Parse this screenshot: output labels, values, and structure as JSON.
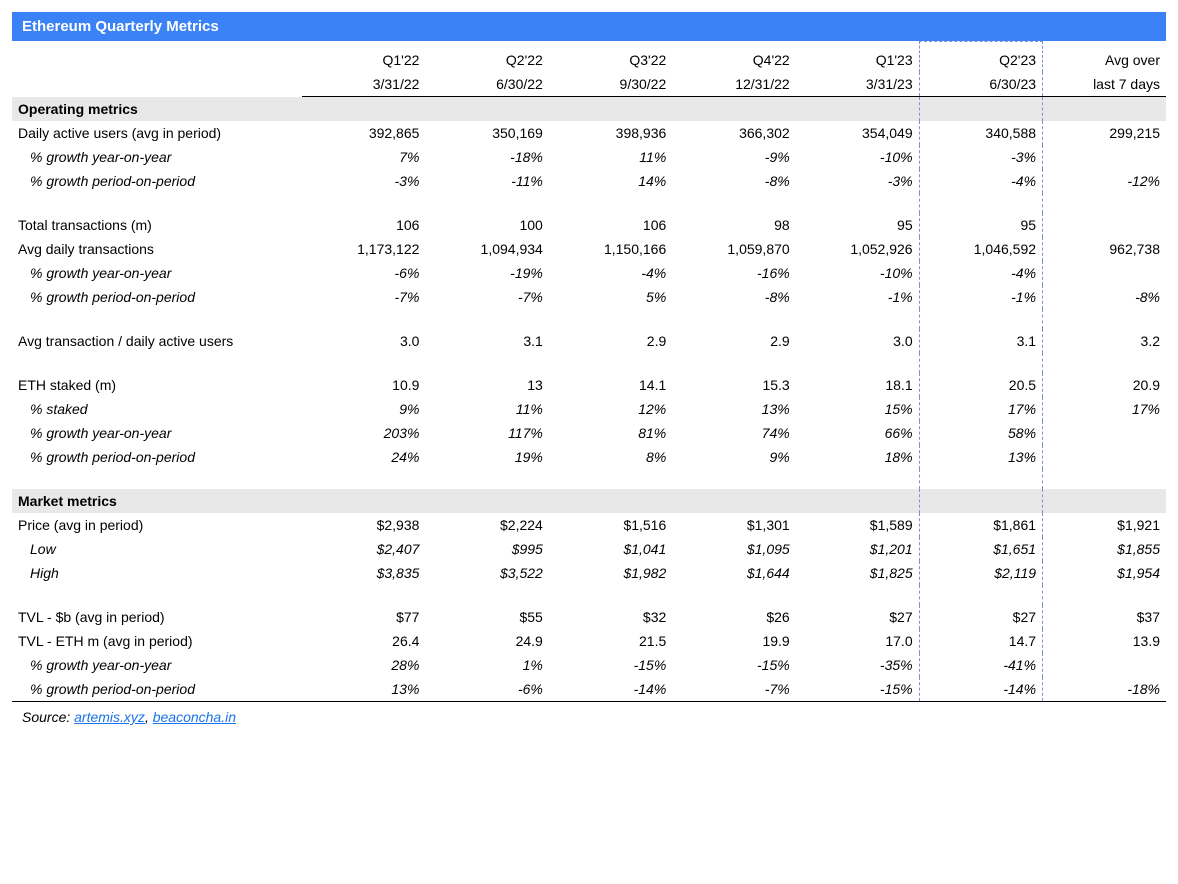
{
  "title": "Ethereum Quarterly Metrics",
  "colors": {
    "headerBar": "#3b82f6",
    "headerText": "#ffffff",
    "sectionBg": "#e8e8e8",
    "highlightBorder": "#7a93d0",
    "link": "#1a73e8",
    "background": "#ffffff",
    "text": "#000000"
  },
  "columns": [
    {
      "q": "Q1'22",
      "date": "3/31/22"
    },
    {
      "q": "Q2'22",
      "date": "6/30/22"
    },
    {
      "q": "Q3'22",
      "date": "9/30/22"
    },
    {
      "q": "Q4'22",
      "date": "12/31/22"
    },
    {
      "q": "Q1'23",
      "date": "3/31/23"
    },
    {
      "q": "Q2'23",
      "date": "6/30/23",
      "highlight": true
    },
    {
      "q": "Avg over",
      "date": "last 7 days"
    }
  ],
  "sections": [
    {
      "title": "Operating metrics",
      "rows": [
        {
          "label": "Daily active users (avg in period)",
          "cells": [
            "392,865",
            "350,169",
            "398,936",
            "366,302",
            "354,049",
            "340,588",
            "299,215"
          ]
        },
        {
          "label": "% growth year-on-year",
          "sub": true,
          "cells": [
            "7%",
            "-18%",
            "11%",
            "-9%",
            "-10%",
            "-3%",
            ""
          ]
        },
        {
          "label": "% growth period-on-period",
          "sub": true,
          "cells": [
            "-3%",
            "-11%",
            "14%",
            "-8%",
            "-3%",
            "-4%",
            "-12%"
          ]
        },
        {
          "spacer": true
        },
        {
          "label": "Total transactions (m)",
          "cells": [
            "106",
            "100",
            "106",
            "98",
            "95",
            "95",
            ""
          ]
        },
        {
          "label": "Avg daily transactions",
          "cells": [
            "1,173,122",
            "1,094,934",
            "1,150,166",
            "1,059,870",
            "1,052,926",
            "1,046,592",
            "962,738"
          ]
        },
        {
          "label": "% growth year-on-year",
          "sub": true,
          "cells": [
            "-6%",
            "-19%",
            "-4%",
            "-16%",
            "-10%",
            "-4%",
            ""
          ]
        },
        {
          "label": "% growth period-on-period",
          "sub": true,
          "cells": [
            "-7%",
            "-7%",
            "5%",
            "-8%",
            "-1%",
            "-1%",
            "-8%"
          ]
        },
        {
          "spacer": true
        },
        {
          "label": "Avg transaction / daily active users",
          "cells": [
            "3.0",
            "3.1",
            "2.9",
            "2.9",
            "3.0",
            "3.1",
            "3.2"
          ]
        },
        {
          "spacer": true
        },
        {
          "label": "ETH staked (m)",
          "cells": [
            "10.9",
            "13",
            "14.1",
            "15.3",
            "18.1",
            "20.5",
            "20.9"
          ]
        },
        {
          "label": "% staked",
          "sub": true,
          "cells": [
            "9%",
            "11%",
            "12%",
            "13%",
            "15%",
            "17%",
            "17%"
          ]
        },
        {
          "label": "% growth year-on-year",
          "sub": true,
          "cells": [
            "203%",
            "117%",
            "81%",
            "74%",
            "66%",
            "58%",
            ""
          ]
        },
        {
          "label": "% growth period-on-period",
          "sub": true,
          "cells": [
            "24%",
            "19%",
            "8%",
            "9%",
            "18%",
            "13%",
            ""
          ]
        },
        {
          "spacer": true
        }
      ]
    },
    {
      "title": "Market metrics",
      "rows": [
        {
          "label": "Price (avg in period)",
          "cells": [
            "$2,938",
            "$2,224",
            "$1,516",
            "$1,301",
            "$1,589",
            "$1,861",
            "$1,921"
          ]
        },
        {
          "label": "Low",
          "sub": true,
          "cells": [
            "$2,407",
            "$995",
            "$1,041",
            "$1,095",
            "$1,201",
            "$1,651",
            "$1,855"
          ]
        },
        {
          "label": "High",
          "sub": true,
          "cells": [
            "$3,835",
            "$3,522",
            "$1,982",
            "$1,644",
            "$1,825",
            "$2,119",
            "$1,954"
          ]
        },
        {
          "spacer": true
        },
        {
          "label": "TVL - $b (avg in period)",
          "cells": [
            "$77",
            "$55",
            "$32",
            "$26",
            "$27",
            "$27",
            "$37"
          ]
        },
        {
          "label": "TVL - ETH m (avg in period)",
          "cells": [
            "26.4",
            "24.9",
            "21.5",
            "19.9",
            "17.0",
            "14.7",
            "13.9"
          ]
        },
        {
          "label": "% growth year-on-year",
          "sub": true,
          "cells": [
            "28%",
            "1%",
            "-15%",
            "-15%",
            "-35%",
            "-41%",
            ""
          ]
        },
        {
          "label": "% growth period-on-period",
          "sub": true,
          "cells": [
            "13%",
            "-6%",
            "-14%",
            "-7%",
            "-15%",
            "-14%",
            "-18%"
          ]
        }
      ]
    }
  ],
  "source": {
    "prefix": "Source: ",
    "links": [
      {
        "text": "artemis.xyz"
      },
      {
        "text": "beaconcha.in"
      }
    ],
    "separator": ", "
  }
}
